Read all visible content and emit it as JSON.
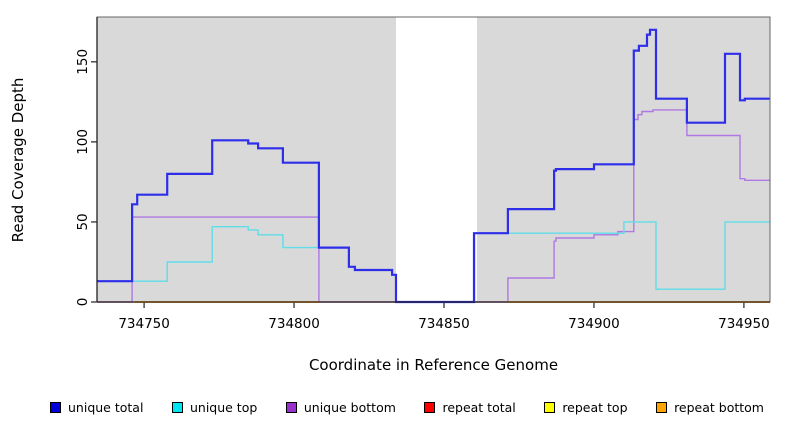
{
  "figure": {
    "background": "#ffffff",
    "plot_background": "#d9d9d9",
    "gap_background": "#ffffff",
    "axis_color": "#222222",
    "box_color": "#666666"
  },
  "chart_data": {
    "type": "line",
    "subtype": "step-coverage",
    "title": "",
    "xlabel": "Coordinate in Reference Genome",
    "ylabel": "Read Coverage Depth",
    "xlim": [
      734734.3,
      734958.7
    ],
    "ylim": [
      0,
      178
    ],
    "x_ticks": [
      734750,
      734800,
      734850,
      734900,
      734950
    ],
    "y_ticks": [
      0,
      50,
      100,
      150
    ],
    "grid": false,
    "legend_position": "bottom",
    "coverage_gap_x": [
      734834,
      734861
    ],
    "draw_order": [
      "repeat_top",
      "repeat_total",
      "unique_bottom",
      "unique_top",
      "unique_total",
      "repeat_bottom"
    ],
    "series": [
      {
        "name": "unique_total",
        "label": "unique total",
        "color": "#0000dd",
        "line_color": "#2e2eea",
        "line_width": 2.2,
        "points": [
          [
            734734.3,
            13
          ],
          [
            734746,
            61
          ],
          [
            734747.7,
            67
          ],
          [
            734757.7,
            80
          ],
          [
            734772.7,
            101
          ],
          [
            734784.7,
            99
          ],
          [
            734788,
            96
          ],
          [
            734796.3,
            87
          ],
          [
            734808.3,
            34
          ],
          [
            734818.3,
            22
          ],
          [
            734820.3,
            20
          ],
          [
            734832.7,
            17
          ],
          [
            734834,
            0
          ],
          [
            734860,
            43
          ],
          [
            734871.3,
            58
          ],
          [
            734886.7,
            82
          ],
          [
            734887.3,
            83
          ],
          [
            734900,
            86
          ],
          [
            734913.3,
            157
          ],
          [
            734915,
            160
          ],
          [
            734917.7,
            167
          ],
          [
            734918.7,
            170
          ],
          [
            734920.7,
            127
          ],
          [
            734931,
            112
          ],
          [
            734943.7,
            155
          ],
          [
            734948.7,
            126
          ],
          [
            734950.3,
            127
          ]
        ]
      },
      {
        "name": "unique_top",
        "label": "unique top",
        "color": "#00e6f0",
        "line_color": "#5fdde8",
        "line_width": 1.4,
        "points": [
          [
            734734.3,
            13
          ],
          [
            734757.7,
            25
          ],
          [
            734772.7,
            47
          ],
          [
            734784.7,
            45
          ],
          [
            734788,
            42
          ],
          [
            734796.3,
            34
          ],
          [
            734818.3,
            22
          ],
          [
            734820.3,
            20
          ],
          [
            734832.7,
            17
          ],
          [
            734834,
            0
          ],
          [
            734860.2,
            43
          ],
          [
            734910,
            50
          ],
          [
            734920.7,
            8
          ],
          [
            734943.7,
            50
          ]
        ]
      },
      {
        "name": "unique_bottom",
        "label": "unique bottom",
        "color": "#9932cc",
        "line_color": "#b078e2",
        "line_width": 1.4,
        "points": [
          [
            734734.3,
            0
          ],
          [
            734746,
            53
          ],
          [
            734808.3,
            0
          ],
          [
            734871.3,
            15
          ],
          [
            734886.7,
            38
          ],
          [
            734887.3,
            40
          ],
          [
            734900,
            42
          ],
          [
            734908,
            44
          ],
          [
            734913.3,
            114
          ],
          [
            734914.7,
            117
          ],
          [
            734916,
            119
          ],
          [
            734919.7,
            120
          ],
          [
            734931,
            104
          ],
          [
            734948.7,
            77
          ],
          [
            734950.3,
            76
          ]
        ]
      },
      {
        "name": "repeat_total",
        "label": "repeat total",
        "color": "#ff0000",
        "line_color": "#e0506e",
        "line_width": 1.3,
        "points": [
          [
            734734.3,
            0
          ]
        ]
      },
      {
        "name": "repeat_top",
        "label": "repeat top",
        "color": "#ffff00",
        "line_color": "#ffff00",
        "line_width": 1.2,
        "points": [
          [
            734734.3,
            0
          ]
        ]
      },
      {
        "name": "repeat_bottom",
        "label": "repeat bottom",
        "color": "#ffa500",
        "line_color": "#ff9f1a",
        "line_width": 1.8,
        "points": [
          [
            734747,
            0
          ],
          [
            734808.3,
            null
          ],
          [
            734871.3,
            0
          ]
        ]
      }
    ]
  },
  "legend": {
    "items": [
      {
        "label": "unique total",
        "color": "#0000dd"
      },
      {
        "label": "unique top",
        "color": "#00e6f0"
      },
      {
        "label": "unique bottom",
        "color": "#9932cc"
      },
      {
        "label": "repeat total",
        "color": "#ff0000"
      },
      {
        "label": "repeat top",
        "color": "#ffff00"
      },
      {
        "label": "repeat bottom",
        "color": "#ffa500"
      }
    ]
  }
}
